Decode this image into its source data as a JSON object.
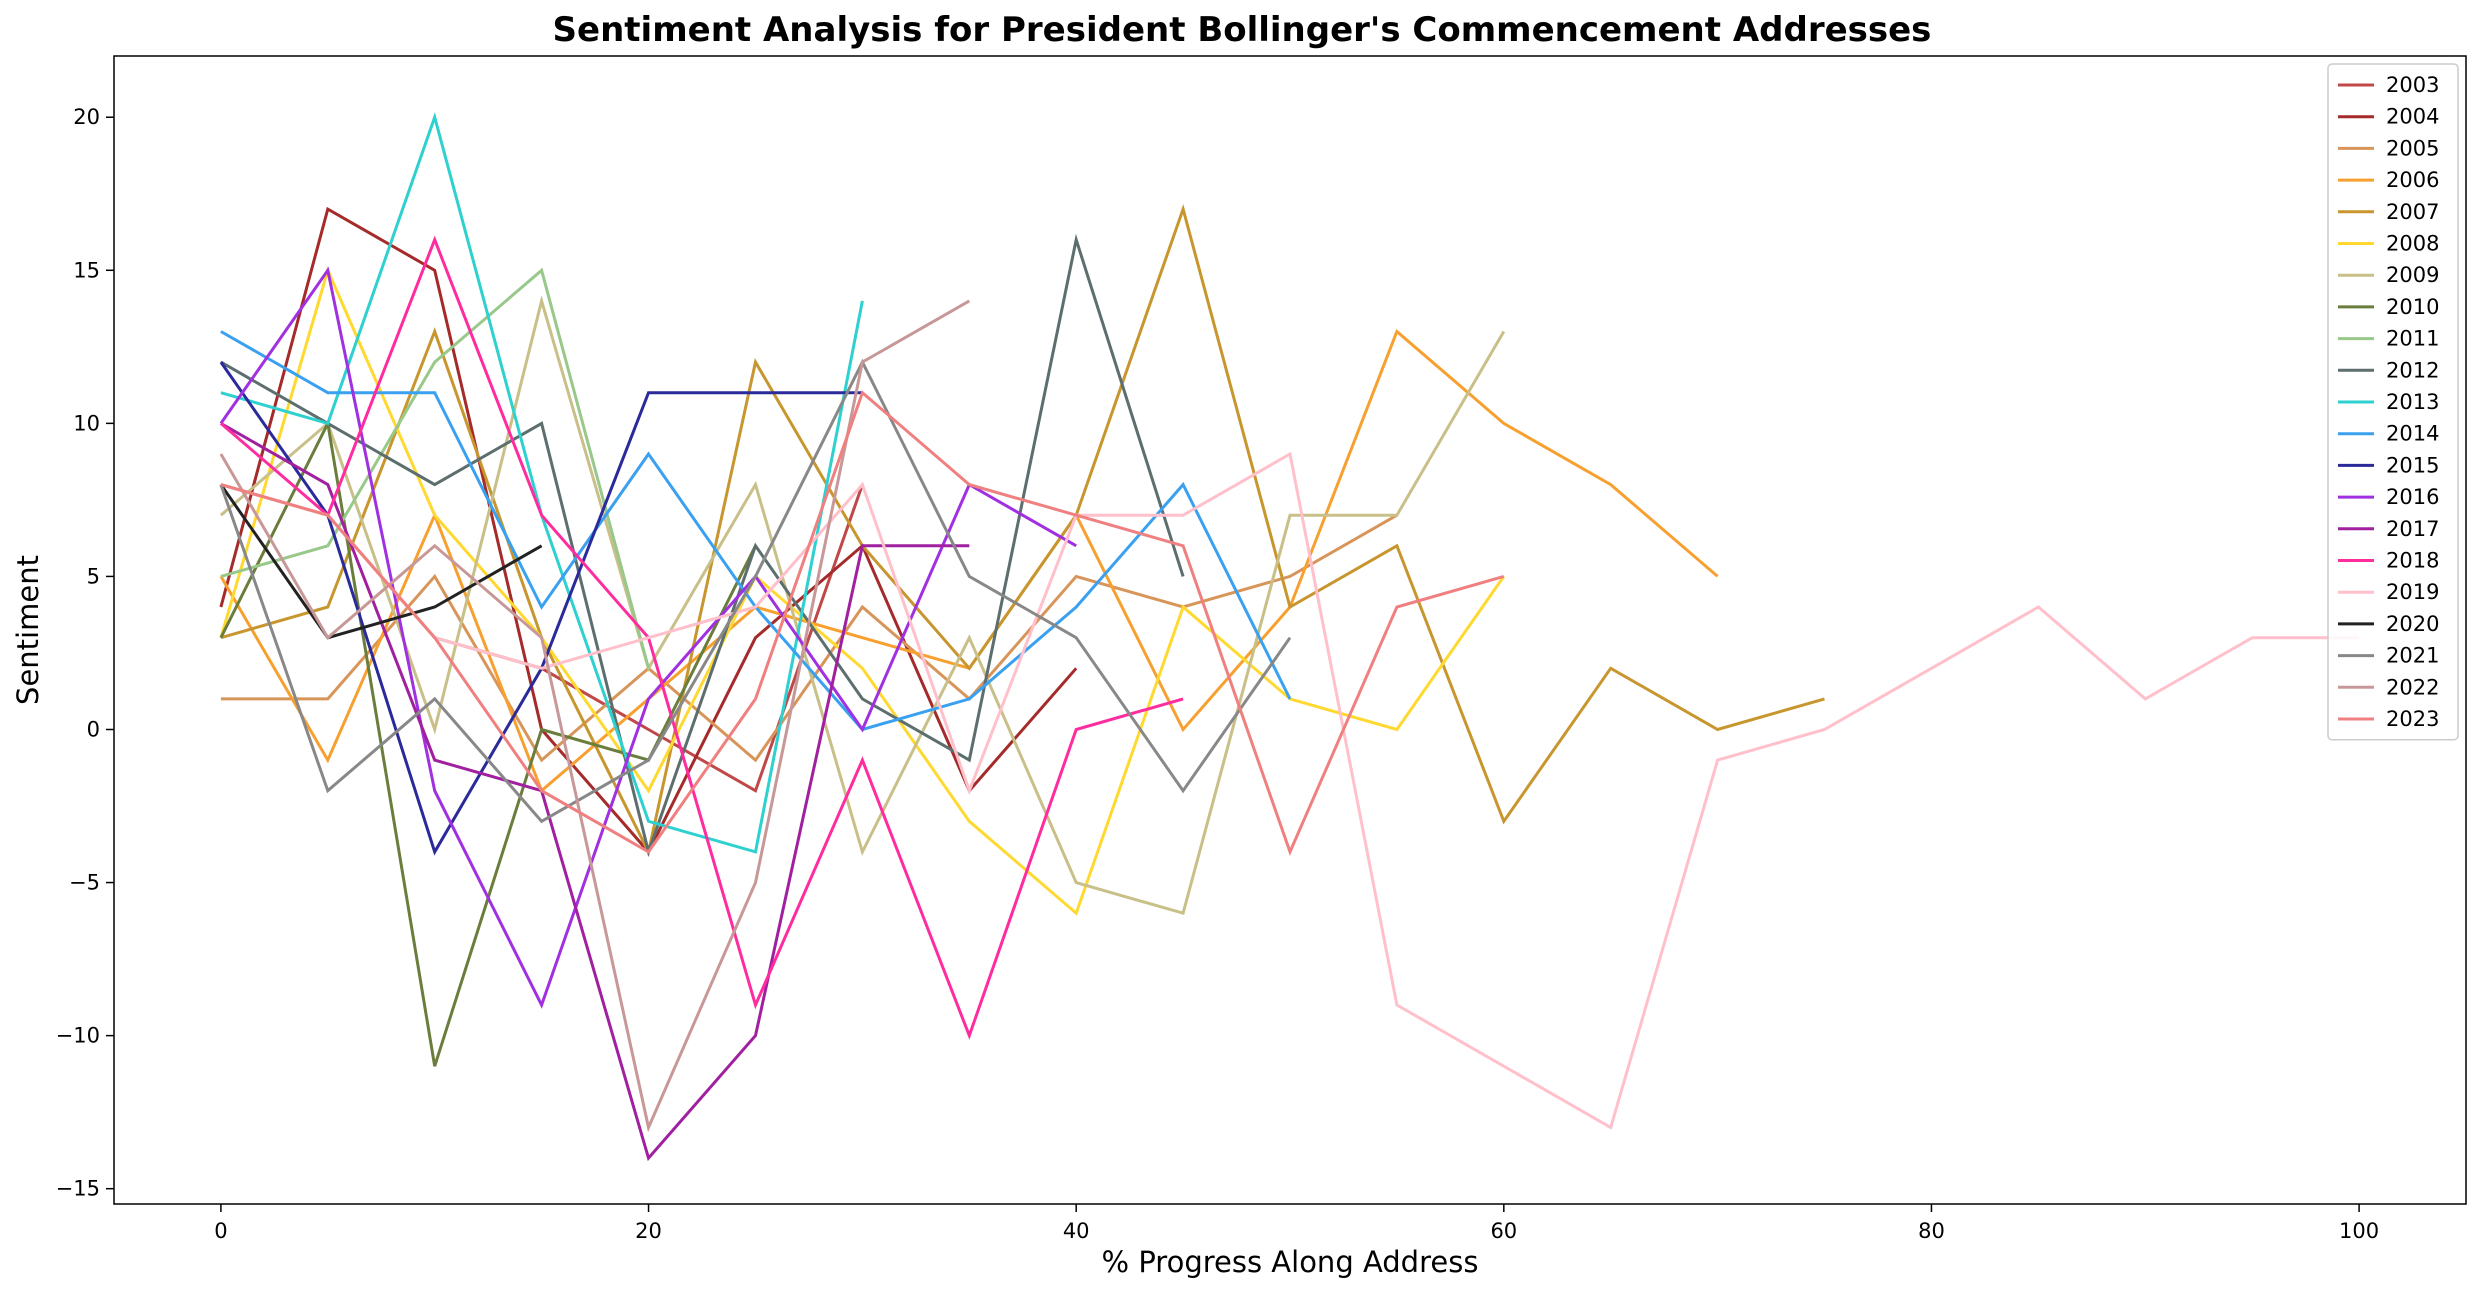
{
  "chart_data": {
    "type": "line",
    "title": "Sentiment Analysis for President Bollinger's Commencement Addresses",
    "xlabel": "% Progress Along Address",
    "ylabel": "Sentiment",
    "xlim": [
      -5,
      105
    ],
    "ylim": [
      -15.5,
      22
    ],
    "xticks": [
      0,
      20,
      40,
      60,
      80,
      100
    ],
    "yticks": [
      -15,
      -10,
      -5,
      0,
      5,
      10,
      15,
      20
    ],
    "grid": false,
    "legend_position": "top-right",
    "series": [
      {
        "name": "2003",
        "color": "#c04848",
        "x": [
          0,
          5,
          10,
          15,
          20,
          25,
          30
        ],
        "y": [
          8,
          7,
          3,
          2,
          0,
          -2,
          8
        ]
      },
      {
        "name": "2004",
        "color": "#a52a2a",
        "x": [
          0,
          5,
          10,
          15,
          20,
          25,
          30,
          35,
          40
        ],
        "y": [
          4,
          17,
          15,
          0,
          -4,
          3,
          6,
          -2,
          2
        ]
      },
      {
        "name": "2005",
        "color": "#d8955a",
        "x": [
          0,
          5,
          10,
          15,
          20,
          25,
          30,
          35,
          40,
          45,
          50,
          55
        ],
        "y": [
          1,
          1,
          5,
          -1,
          2,
          -1,
          4,
          1,
          5,
          4,
          5,
          7
        ]
      },
      {
        "name": "2006",
        "color": "#f7a030",
        "x": [
          0,
          5,
          10,
          15,
          20,
          25,
          30,
          35,
          40,
          45,
          50,
          55,
          60,
          65,
          70
        ],
        "y": [
          5,
          -1,
          7,
          -2,
          1,
          4,
          3,
          2,
          7,
          0,
          4,
          13,
          10,
          8,
          5
        ]
      },
      {
        "name": "2007",
        "color": "#c8962e",
        "x": [
          0,
          5,
          10,
          15,
          20,
          25,
          30,
          35,
          40,
          45,
          50,
          55,
          60,
          65,
          70,
          75
        ],
        "y": [
          3,
          4,
          13,
          3,
          -4,
          12,
          6,
          2,
          7,
          17,
          4,
          6,
          -3,
          2,
          0,
          1
        ]
      },
      {
        "name": "2008",
        "color": "#ffd92f",
        "x": [
          0,
          5,
          10,
          15,
          20,
          25,
          30,
          35,
          40,
          45,
          50,
          55,
          60
        ],
        "y": [
          3,
          15,
          7,
          3,
          -2,
          5,
          2,
          -3,
          -6,
          4,
          1,
          0,
          5
        ]
      },
      {
        "name": "2009",
        "color": "#c8c088",
        "x": [
          0,
          5,
          10,
          15,
          20,
          25,
          30,
          35,
          40,
          45,
          50,
          55,
          60
        ],
        "y": [
          7,
          10,
          0,
          14,
          2,
          8,
          -4,
          3,
          -5,
          -6,
          7,
          7,
          13
        ]
      },
      {
        "name": "2010",
        "color": "#6b7d3c",
        "x": [
          0,
          5,
          10,
          15,
          20,
          25
        ],
        "y": [
          3,
          10,
          -11,
          0,
          -1,
          6
        ]
      },
      {
        "name": "2011",
        "color": "#98c88a",
        "x": [
          0,
          5,
          10,
          15,
          20
        ],
        "y": [
          5,
          6,
          12,
          15,
          2
        ]
      },
      {
        "name": "2012",
        "color": "#5c6e6e",
        "x": [
          0,
          5,
          10,
          15,
          20,
          25,
          30,
          35,
          40,
          45
        ],
        "y": [
          12,
          10,
          8,
          10,
          -4,
          6,
          1,
          -1,
          16,
          5
        ]
      },
      {
        "name": "2013",
        "color": "#2ed0d0",
        "x": [
          0,
          5,
          10,
          15,
          20,
          25,
          30
        ],
        "y": [
          11,
          10,
          20,
          7,
          -3,
          -4,
          14
        ]
      },
      {
        "name": "2014",
        "color": "#3aa0f0",
        "x": [
          0,
          5,
          10,
          15,
          20,
          25,
          30,
          35,
          40,
          45,
          50
        ],
        "y": [
          13,
          11,
          11,
          4,
          9,
          4,
          0,
          1,
          4,
          8,
          1
        ]
      },
      {
        "name": "2015",
        "color": "#2a2a9a",
        "x": [
          0,
          5,
          10,
          15,
          20,
          25,
          30
        ],
        "y": [
          12,
          7,
          -4,
          2,
          11,
          11,
          11
        ]
      },
      {
        "name": "2016",
        "color": "#a030e0",
        "x": [
          0,
          5,
          10,
          15,
          20,
          25,
          30,
          35,
          40
        ],
        "y": [
          10,
          15,
          -2,
          -9,
          1,
          5,
          0,
          8,
          6
        ]
      },
      {
        "name": "2017",
        "color": "#a020a0",
        "x": [
          0,
          5,
          10,
          15,
          20,
          25,
          30,
          35
        ],
        "y": [
          10,
          8,
          -1,
          -2,
          -14,
          -10,
          6,
          6
        ]
      },
      {
        "name": "2018",
        "color": "#ff2ca0",
        "x": [
          0,
          5,
          10,
          15,
          20,
          25,
          30,
          35,
          40,
          45
        ],
        "y": [
          10,
          7,
          16,
          7,
          3,
          -9,
          -1,
          -10,
          0,
          1
        ]
      },
      {
        "name": "2019",
        "color": "#ffc0cb",
        "x": [
          0,
          5,
          10,
          15,
          20,
          25,
          30,
          35,
          40,
          45,
          50,
          55,
          60,
          65,
          70,
          75,
          80,
          85,
          90,
          95,
          100
        ],
        "y": [
          8,
          7,
          3,
          2,
          3,
          4,
          8,
          -2,
          7,
          7,
          9,
          -9,
          -11,
          -13,
          -1,
          0,
          2,
          4,
          1,
          3,
          3
        ]
      },
      {
        "name": "2020",
        "color": "#222222",
        "x": [
          0,
          5,
          10,
          15
        ],
        "y": [
          8,
          3,
          4,
          6
        ]
      },
      {
        "name": "2021",
        "color": "#888888",
        "x": [
          0,
          5,
          10,
          15,
          20,
          25,
          30,
          35,
          40,
          45,
          50
        ],
        "y": [
          8,
          -2,
          1,
          -3,
          -1,
          5,
          12,
          5,
          3,
          -2,
          3
        ]
      },
      {
        "name": "2022",
        "color": "#c89898",
        "x": [
          0,
          5,
          10,
          15,
          20,
          25,
          30,
          35
        ],
        "y": [
          9,
          3,
          6,
          3,
          -13,
          -5,
          12,
          14
        ]
      },
      {
        "name": "2023",
        "color": "#f08080",
        "x": [
          0,
          5,
          10,
          15,
          20,
          25,
          30,
          35,
          40,
          45,
          50,
          55,
          60
        ],
        "y": [
          8,
          7,
          3,
          -2,
          -4,
          1,
          11,
          8,
          7,
          6,
          -4,
          4,
          5
        ]
      }
    ]
  }
}
